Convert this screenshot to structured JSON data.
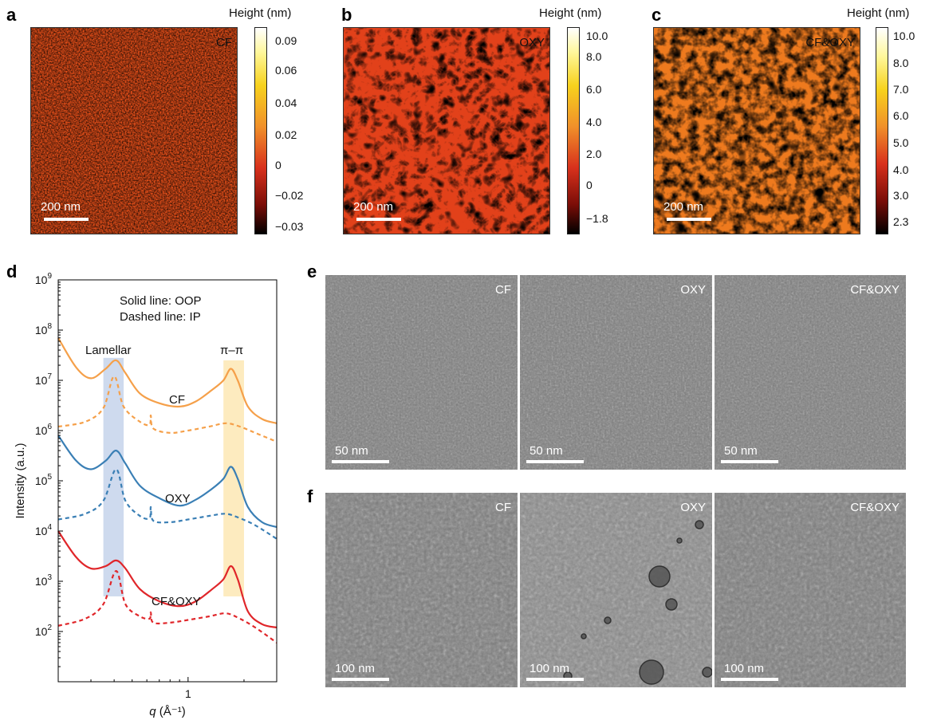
{
  "panels": {
    "a": {
      "letter": "a",
      "label": "CF",
      "cbar_title": "Height (nm)",
      "cbar_ticks": [
        "0.09",
        "0.06",
        "0.04",
        "0.02",
        "0",
        "−0.02",
        "−0.03"
      ],
      "scalebar": "200 nm"
    },
    "b": {
      "letter": "b",
      "label": "OXY",
      "cbar_title": "Height (nm)",
      "cbar_ticks": [
        "10.0",
        "8.0",
        "6.0",
        "4.0",
        "2.0",
        "0",
        "−1.8"
      ],
      "scalebar": "200 nm"
    },
    "c": {
      "letter": "c",
      "label": "CF&OXY",
      "cbar_title": "Height (nm)",
      "cbar_ticks": [
        "10.0",
        "8.0",
        "7.0",
        "6.0",
        "5.0",
        "4.0",
        "3.0",
        "2.3"
      ],
      "scalebar": "200 nm"
    },
    "d": {
      "letter": "d"
    },
    "e": {
      "letter": "e",
      "images": [
        {
          "label": "CF",
          "scalebar": "50 nm"
        },
        {
          "label": "OXY",
          "scalebar": "50 nm"
        },
        {
          "label": "CF&OXY",
          "scalebar": "50 nm"
        }
      ]
    },
    "f": {
      "letter": "f",
      "images": [
        {
          "label": "CF",
          "scalebar": "100 nm"
        },
        {
          "label": "OXY",
          "scalebar": "100 nm"
        },
        {
          "label": "CF&OXY",
          "scalebar": "100 nm"
        }
      ]
    }
  },
  "colors": {
    "cf": "#f5a04a",
    "oxy": "#3a7fb5",
    "cfoxy": "#e0262a",
    "lamellar_band": "#c9d6ec",
    "pipi_band": "#fde9b8"
  },
  "chart_data": {
    "type": "line",
    "title": "",
    "xlabel": "q (Å⁻¹)",
    "ylabel": "Intensity (a.u.)",
    "xscale": "log",
    "yscale": "log",
    "xlim": [
      0.2,
      3.0
    ],
    "ylim": [
      10,
      1000000000
    ],
    "x_ticks": [
      "1"
    ],
    "y_ticks": [
      "10^9",
      "10^8",
      "10^7",
      "10^6",
      "10^5",
      "10^4",
      "10^3",
      "10^2"
    ],
    "annotations": [
      "Solid line: OOP",
      "Dashed line: IP",
      "Lamellar",
      "π–π"
    ],
    "bands": [
      {
        "name": "Lamellar",
        "x": [
          0.35,
          0.45
        ]
      },
      {
        "name": "π–π",
        "x": [
          1.55,
          2.0
        ]
      }
    ],
    "series": [
      {
        "name": "CF",
        "style": "solid",
        "color_key": "cf",
        "points": [
          [
            0.2,
            70000000.0
          ],
          [
            0.25,
            18000000.0
          ],
          [
            0.3,
            11000000.0
          ],
          [
            0.36,
            17000000.0
          ],
          [
            0.41,
            25000000.0
          ],
          [
            0.46,
            14000000.0
          ],
          [
            0.55,
            5500000.0
          ],
          [
            0.7,
            3500000.0
          ],
          [
            0.9,
            3000000.0
          ],
          [
            1.1,
            3800000.0
          ],
          [
            1.35,
            6500000.0
          ],
          [
            1.55,
            10000000.0
          ],
          [
            1.7,
            17000000.0
          ],
          [
            1.85,
            10000000.0
          ],
          [
            2.1,
            3000000.0
          ],
          [
            2.5,
            1700000.0
          ],
          [
            3.0,
            1400000.0
          ]
        ]
      },
      {
        "name": "CF",
        "style": "dashed",
        "color_key": "cf",
        "points": [
          [
            0.2,
            1200000.0
          ],
          [
            0.28,
            1500000.0
          ],
          [
            0.35,
            2800000.0
          ],
          [
            0.4,
            12000000.0
          ],
          [
            0.45,
            3000000.0
          ],
          [
            0.55,
            1500000.0
          ],
          [
            0.62,
            1300000.0
          ],
          [
            0.63,
            2000000.0
          ],
          [
            0.65,
            1100000.0
          ],
          [
            0.8,
            900000.0
          ],
          [
            1.0,
            1000000.0
          ],
          [
            1.3,
            1200000.0
          ],
          [
            1.6,
            1400000.0
          ],
          [
            1.9,
            1200000.0
          ],
          [
            2.3,
            900000.0
          ],
          [
            3.0,
            600000.0
          ]
        ]
      },
      {
        "name": "OXY",
        "style": "solid",
        "color_key": "oxy",
        "points": [
          [
            0.2,
            800000.0
          ],
          [
            0.25,
            250000.0
          ],
          [
            0.3,
            170000.0
          ],
          [
            0.36,
            250000.0
          ],
          [
            0.41,
            400000.0
          ],
          [
            0.46,
            220000.0
          ],
          [
            0.55,
            80000.0
          ],
          [
            0.7,
            45000.0
          ],
          [
            0.9,
            32000.0
          ],
          [
            1.1,
            42000.0
          ],
          [
            1.35,
            70000.0
          ],
          [
            1.55,
            110000.0
          ],
          [
            1.7,
            190000.0
          ],
          [
            1.85,
            110000.0
          ],
          [
            2.1,
            30000.0
          ],
          [
            2.5,
            15000.0
          ],
          [
            3.0,
            12000.0
          ]
        ]
      },
      {
        "name": "OXY",
        "style": "dashed",
        "color_key": "oxy",
        "points": [
          [
            0.2,
            17000.0
          ],
          [
            0.28,
            22000.0
          ],
          [
            0.35,
            40000.0
          ],
          [
            0.41,
            170000.0
          ],
          [
            0.46,
            40000.0
          ],
          [
            0.55,
            20000.0
          ],
          [
            0.62,
            18000.0
          ],
          [
            0.63,
            30000.0
          ],
          [
            0.65,
            16000.0
          ],
          [
            0.8,
            15000.0
          ],
          [
            1.0,
            17000.0
          ],
          [
            1.3,
            20000.0
          ],
          [
            1.6,
            22000.0
          ],
          [
            1.9,
            18000.0
          ],
          [
            2.3,
            13000.0
          ],
          [
            3.0,
            7000.0
          ]
        ]
      },
      {
        "name": "CF&OXY",
        "style": "solid",
        "color_key": "cfoxy",
        "points": [
          [
            0.2,
            10000.0
          ],
          [
            0.25,
            3000.0
          ],
          [
            0.3,
            1800.0
          ],
          [
            0.36,
            2000.0
          ],
          [
            0.41,
            2600.0
          ],
          [
            0.46,
            1800.0
          ],
          [
            0.55,
            700.0
          ],
          [
            0.7,
            400.0
          ],
          [
            0.9,
            320.0
          ],
          [
            1.1,
            400.0
          ],
          [
            1.35,
            700.0
          ],
          [
            1.55,
            1100.0
          ],
          [
            1.7,
            2000.0
          ],
          [
            1.85,
            1100.0
          ],
          [
            2.1,
            250.0
          ],
          [
            2.5,
            140.0
          ],
          [
            3.0,
            120.0
          ]
        ]
      },
      {
        "name": "CF&OXY",
        "style": "dashed",
        "color_key": "cfoxy",
        "points": [
          [
            0.2,
            130.0
          ],
          [
            0.28,
            180.0
          ],
          [
            0.35,
            350.0
          ],
          [
            0.41,
            1600.0
          ],
          [
            0.46,
            350.0
          ],
          [
            0.55,
            200.0
          ],
          [
            0.62,
            180.0
          ],
          [
            0.63,
            240.0
          ],
          [
            0.65,
            150.0
          ],
          [
            0.8,
            150.0
          ],
          [
            1.0,
            170.0
          ],
          [
            1.3,
            200.0
          ],
          [
            1.6,
            230.0
          ],
          [
            1.9,
            180.0
          ],
          [
            2.3,
            120.0
          ],
          [
            3.0,
            60.0
          ]
        ]
      }
    ]
  }
}
